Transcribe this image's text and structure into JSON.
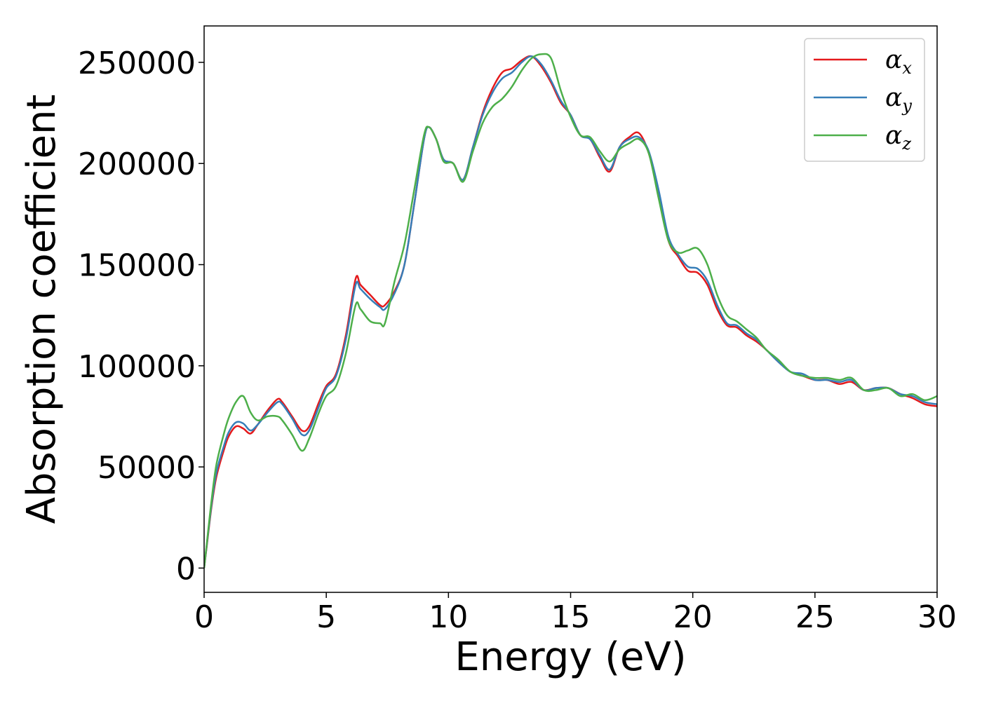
{
  "chart_data": {
    "type": "line",
    "xlabel": "Energy (eV)",
    "ylabel": "Absorption coefficient",
    "xlim": [
      0,
      30
    ],
    "ylim": [
      -12000,
      268000
    ],
    "xticks": [
      0,
      5,
      10,
      15,
      20,
      25,
      30
    ],
    "xtick_labels": [
      "0",
      "5",
      "10",
      "15",
      "20",
      "25",
      "30"
    ],
    "yticks": [
      0,
      50000,
      100000,
      150000,
      200000,
      250000
    ],
    "ytick_labels": [
      "0",
      "50000",
      "100000",
      "150000",
      "200000",
      "250000"
    ],
    "grid": false,
    "legend": {
      "position": "top-right"
    },
    "series": [
      {
        "name": "α",
        "subscript": "x",
        "color": "#e41a1c",
        "x": [
          0,
          0.1,
          0.3,
          0.5,
          0.8,
          1.0,
          1.3,
          1.6,
          1.9,
          2.2,
          2.6,
          3.0,
          3.2,
          3.6,
          4.0,
          4.3,
          4.7,
          5.0,
          5.4,
          5.8,
          6.2,
          6.4,
          6.8,
          7.2,
          7.4,
          7.8,
          8.2,
          8.6,
          9.0,
          9.2,
          9.5,
          9.8,
          10.2,
          10.6,
          11.0,
          11.4,
          11.8,
          12.2,
          12.6,
          13.0,
          13.4,
          13.8,
          14.2,
          14.6,
          15.0,
          15.4,
          15.8,
          16.2,
          16.6,
          17.0,
          17.4,
          17.8,
          18.2,
          18.6,
          19.0,
          19.4,
          19.8,
          20.2,
          20.6,
          21.0,
          21.4,
          21.8,
          22.2,
          22.6,
          23.0,
          23.5,
          24.0,
          24.5,
          25.0,
          25.5,
          26.0,
          26.5,
          27.0,
          27.5,
          28.0,
          28.5,
          29.0,
          29.5,
          30.0
        ],
        "y": [
          0,
          10000,
          30000,
          45000,
          58000,
          65000,
          70000,
          69000,
          66500,
          71000,
          78000,
          83500,
          82000,
          75000,
          68000,
          70000,
          82000,
          90000,
          96000,
          115000,
          143000,
          140000,
          135000,
          130000,
          130000,
          137000,
          150000,
          180000,
          212000,
          218000,
          212000,
          202000,
          200000,
          192000,
          208000,
          225000,
          237000,
          245000,
          247000,
          251000,
          253000,
          248000,
          240000,
          230000,
          224000,
          214000,
          212000,
          203000,
          196000,
          208000,
          213000,
          215000,
          205000,
          185000,
          162000,
          154000,
          147000,
          146000,
          140000,
          128000,
          120000,
          119000,
          115000,
          112000,
          108000,
          102000,
          97000,
          95000,
          93000,
          93000,
          91000,
          92000,
          88000,
          89000,
          89000,
          86000,
          84000,
          81000,
          80000
        ]
      },
      {
        "name": "α",
        "subscript": "y",
        "color": "#377eb8",
        "x": [
          0,
          0.1,
          0.3,
          0.5,
          0.8,
          1.0,
          1.3,
          1.6,
          1.9,
          2.2,
          2.6,
          3.0,
          3.2,
          3.6,
          4.0,
          4.3,
          4.7,
          5.0,
          5.4,
          5.8,
          6.2,
          6.4,
          6.8,
          7.2,
          7.4,
          7.8,
          8.2,
          8.6,
          9.0,
          9.2,
          9.5,
          9.8,
          10.2,
          10.6,
          11.0,
          11.4,
          11.8,
          12.2,
          12.6,
          13.0,
          13.4,
          13.8,
          14.2,
          14.6,
          15.0,
          15.4,
          15.8,
          16.2,
          16.6,
          17.0,
          17.4,
          17.8,
          18.2,
          18.6,
          19.0,
          19.4,
          19.8,
          20.2,
          20.6,
          21.0,
          21.4,
          21.8,
          22.2,
          22.6,
          23.0,
          23.5,
          24.0,
          24.5,
          25.0,
          25.5,
          26.0,
          26.5,
          27.0,
          27.5,
          28.0,
          28.5,
          29.0,
          29.5,
          30.0
        ],
        "y": [
          0,
          10500,
          31000,
          47000,
          60000,
          67000,
          72000,
          71500,
          68000,
          71000,
          77000,
          82000,
          81000,
          74000,
          66000,
          68000,
          80000,
          89000,
          95000,
          113000,
          140000,
          138000,
          133000,
          129000,
          128000,
          136000,
          150000,
          180000,
          212000,
          218000,
          212000,
          202000,
          200000,
          192000,
          208000,
          224000,
          235000,
          242000,
          245000,
          250000,
          253000,
          249000,
          241000,
          231000,
          224000,
          214000,
          212000,
          204000,
          197000,
          208000,
          212000,
          213000,
          206000,
          187000,
          164000,
          155000,
          149000,
          148000,
          142000,
          130000,
          121000,
          120000,
          116000,
          113000,
          108000,
          102000,
          97000,
          96000,
          93000,
          93000,
          92000,
          93000,
          88000,
          89000,
          89000,
          86000,
          85000,
          82000,
          81000
        ]
      },
      {
        "name": "α",
        "subscript": "z",
        "color": "#4daf4a",
        "x": [
          0,
          0.1,
          0.3,
          0.5,
          0.8,
          1.0,
          1.3,
          1.6,
          1.9,
          2.2,
          2.6,
          3.0,
          3.2,
          3.6,
          4.0,
          4.3,
          4.7,
          5.0,
          5.4,
          5.8,
          6.2,
          6.4,
          6.8,
          7.2,
          7.4,
          7.8,
          8.2,
          8.6,
          9.0,
          9.2,
          9.5,
          9.8,
          10.2,
          10.6,
          11.0,
          11.4,
          11.8,
          12.2,
          12.6,
          13.0,
          13.4,
          13.8,
          14.2,
          14.6,
          15.0,
          15.4,
          15.8,
          16.2,
          16.6,
          17.0,
          17.4,
          17.8,
          18.2,
          18.6,
          19.0,
          19.4,
          19.8,
          20.2,
          20.6,
          21.0,
          21.4,
          21.8,
          22.2,
          22.6,
          23.0,
          23.5,
          24.0,
          24.5,
          25.0,
          25.5,
          26.0,
          26.5,
          27.0,
          27.5,
          28.0,
          28.5,
          29.0,
          29.5,
          30.0
        ],
        "y": [
          0,
          11000,
          33000,
          51000,
          66000,
          74000,
          82000,
          85000,
          77000,
          73000,
          75000,
          75000,
          73000,
          66000,
          58000,
          64000,
          77000,
          85000,
          90000,
          106000,
          130000,
          128000,
          122000,
          121000,
          121000,
          142000,
          160000,
          187000,
          214000,
          218000,
          212000,
          201000,
          200000,
          191000,
          206000,
          220000,
          228000,
          232000,
          238000,
          246000,
          252000,
          254000,
          252000,
          236000,
          223000,
          214000,
          213000,
          206000,
          201000,
          207000,
          210000,
          212000,
          205000,
          183000,
          162000,
          156000,
          157000,
          158000,
          150000,
          135000,
          125000,
          122000,
          118000,
          114000,
          108000,
          103000,
          97000,
          95000,
          94000,
          94000,
          93000,
          94000,
          88000,
          88000,
          89000,
          85000,
          86000,
          83000,
          85000
        ]
      }
    ]
  }
}
